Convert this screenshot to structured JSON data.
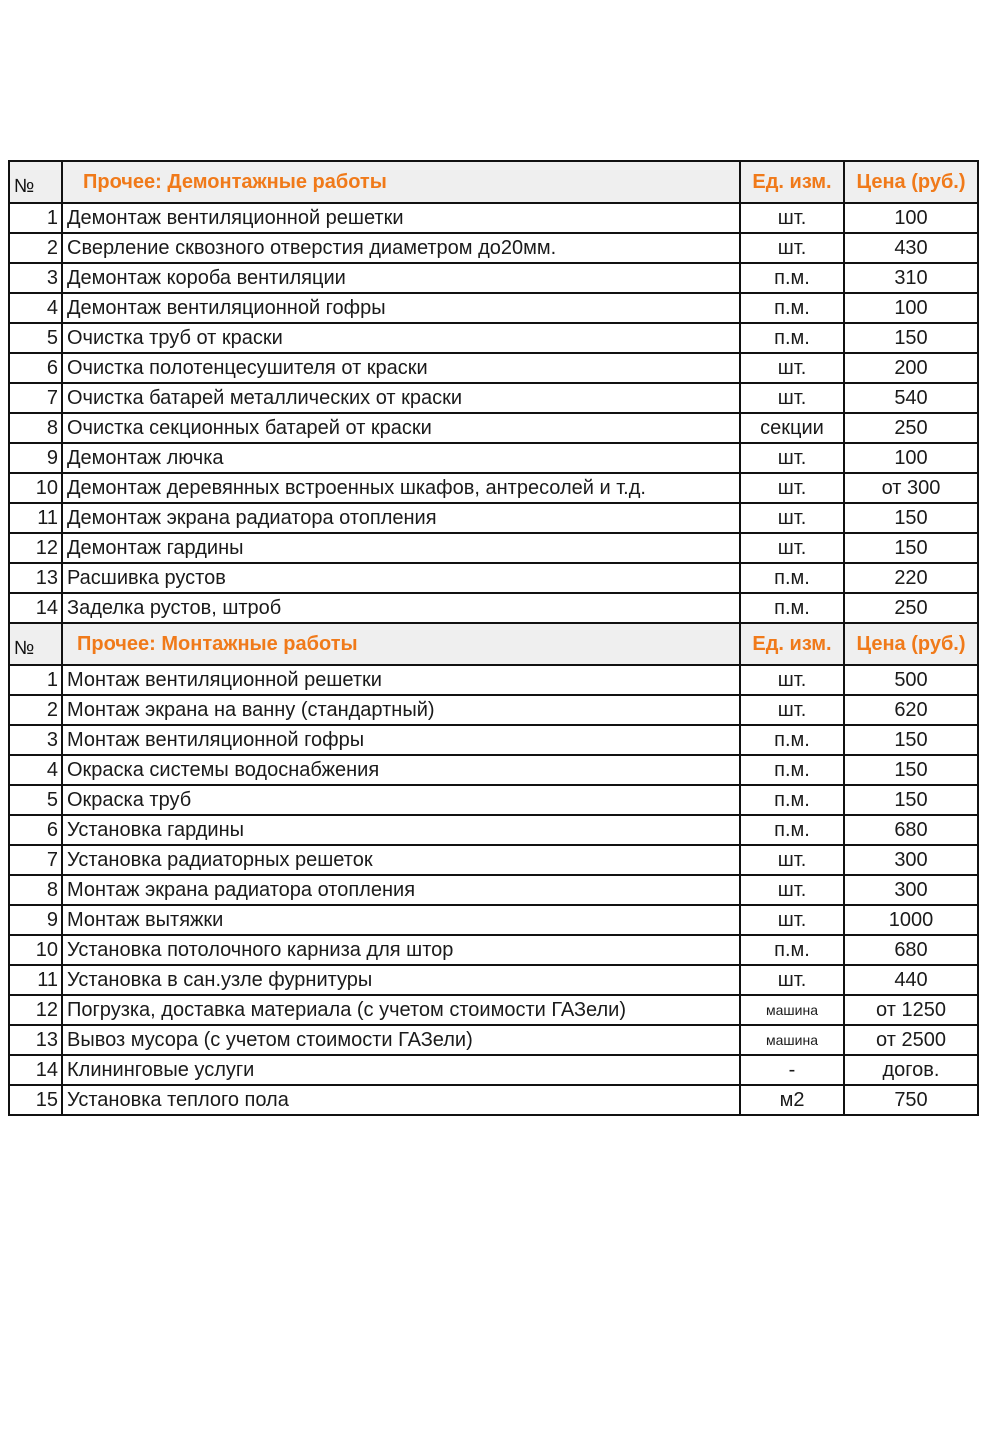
{
  "sections": [
    {
      "header": {
        "no": "№",
        "title": "Прочее: Демонтажные работы",
        "unit": "Ед. изм.",
        "price": "Цена (руб.)"
      },
      "rows": [
        {
          "n": "1",
          "name": "Демонтаж вентиляционной решетки",
          "unit": "шт.",
          "price": "100"
        },
        {
          "n": "2",
          "name": "Сверление сквозного отверстия диаметром до20мм.",
          "unit": "шт.",
          "price": "430"
        },
        {
          "n": "3",
          "name": "Демонтаж короба вентиляции",
          "unit": "п.м.",
          "price": "310"
        },
        {
          "n": "4",
          "name": "Демонтаж вентиляционной гофры",
          "unit": "п.м.",
          "price": "100"
        },
        {
          "n": "5",
          "name": "Очистка труб от краски",
          "unit": "п.м.",
          "price": "150"
        },
        {
          "n": "6",
          "name": "Очистка полотенцесушителя от краски",
          "unit": "шт.",
          "price": "200"
        },
        {
          "n": "7",
          "name": "Очистка батарей металлических от краски",
          "unit": "шт.",
          "price": "540"
        },
        {
          "n": "8",
          "name": "Очистка секционных батарей от краски",
          "unit": "секции",
          "price": "250"
        },
        {
          "n": "9",
          "name": "Демонтаж лючка",
          "unit": "шт.",
          "price": "100"
        },
        {
          "n": "10",
          "name": "Демонтаж деревянных встроенных шкафов, антресолей и т.д.",
          "unit": "шт.",
          "price": "от 300"
        },
        {
          "n": "11",
          "name": "Демонтаж экрана радиатора отопления",
          "unit": "шт.",
          "price": "150"
        },
        {
          "n": "12",
          "name": "Демонтаж гардины",
          "unit": "шт.",
          "price": "150"
        },
        {
          "n": "13",
          "name": "Расшивка рустов",
          "unit": "п.м.",
          "price": "220"
        },
        {
          "n": "14",
          "name": "Заделка рустов, штроб",
          "unit": "п.м.",
          "price": "250"
        }
      ]
    },
    {
      "header": {
        "no": "№",
        "title": "Прочее: Монтажные работы",
        "unit": "Ед. изм.",
        "price": "Цена (руб.)"
      },
      "rows": [
        {
          "n": "1",
          "name": "Монтаж вентиляционной решетки",
          "unit": "шт.",
          "price": "500"
        },
        {
          "n": "2",
          "name": "Монтаж экрана на ванну (стандартный)",
          "unit": "шт.",
          "price": "620"
        },
        {
          "n": "3",
          "name": "Монтаж вентиляционной гофры",
          "unit": "п.м.",
          "price": "150"
        },
        {
          "n": "4",
          "name": "Окраска системы водоснабжения",
          "unit": "п.м.",
          "price": "150"
        },
        {
          "n": "5",
          "name": "Окраска труб",
          "unit": "п.м.",
          "price": "150"
        },
        {
          "n": "6",
          "name": "Установка гардины",
          "unit": "п.м.",
          "price": "680"
        },
        {
          "n": "7",
          "name": "Установка радиаторных решеток",
          "unit": "шт.",
          "price": "300"
        },
        {
          "n": "8",
          "name": "Монтаж экрана радиатора отопления",
          "unit": "шт.",
          "price": "300"
        },
        {
          "n": "9",
          "name": "Монтаж вытяжки",
          "unit": "шт.",
          "price": "1000"
        },
        {
          "n": "10",
          "name": "Установка потолочного карниза для штор",
          "unit": "п.м.",
          "price": "680"
        },
        {
          "n": "11",
          "name": "Установка в сан.узле фурнитуры",
          "unit": "шт.",
          "price": "440"
        },
        {
          "n": "12",
          "name": "Погрузка, доставка материала (с учетом стоимости ГАЗели)",
          "unit": "машина",
          "price": "от 1250"
        },
        {
          "n": "13",
          "name": "Вывоз мусора (с учетом стоимости ГАЗели)",
          "unit": "машина",
          "price": "от 2500"
        },
        {
          "n": "14",
          "name": "Клининговые услуги",
          "unit": "-",
          "price": "догов."
        },
        {
          "n": "15",
          "name": "Установка теплого пола",
          "unit": "м2",
          "price": "750"
        }
      ]
    }
  ],
  "colors": {
    "header_text": "#f07a1a",
    "header_bg": "#efefef",
    "border": "#111111"
  }
}
